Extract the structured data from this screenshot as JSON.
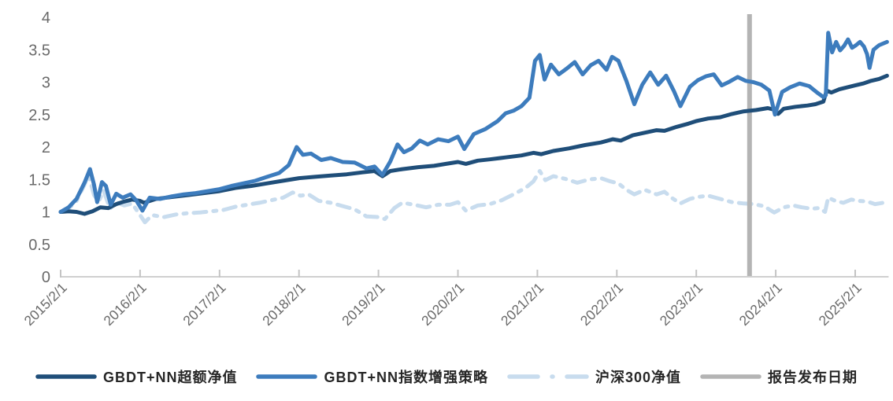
{
  "chart_data": {
    "type": "line",
    "title": "",
    "background": "#ffffff",
    "grid": false,
    "legend_position": "bottom",
    "x_axis": {
      "range_years": [
        0,
        10.42
      ],
      "tick_labels": [
        "2015/2/1",
        "2016/2/1",
        "2017/2/1",
        "2018/2/1",
        "2019/2/1",
        "2020/2/1",
        "2021/2/1",
        "2022/2/1",
        "2023/2/1",
        "2024/2/1",
        "2025/2/1"
      ],
      "tick_positions": [
        0,
        1,
        2,
        3,
        4,
        5,
        6,
        7,
        8,
        9,
        10
      ],
      "axis_color": "#d0d0d0",
      "tick_color": "#c4c4c4",
      "label_color": "#6a6a6a"
    },
    "y_axis": {
      "range": [
        0,
        4
      ],
      "ticks": [
        0,
        0.5,
        1,
        1.5,
        2,
        2.5,
        3,
        3.5,
        4
      ],
      "tick_labels": [
        "0",
        "0.5",
        "1",
        "1.5",
        "2",
        "2.5",
        "3",
        "3.5",
        "4"
      ],
      "label_color": "#6a6a6a"
    },
    "series": [
      {
        "name": "GBDT+NN超额净值",
        "color": "#1f4e79",
        "style": "solid",
        "points": [
          [
            0,
            1.0
          ],
          [
            0.1,
            1.01
          ],
          [
            0.2,
            1.0
          ],
          [
            0.3,
            0.97
          ],
          [
            0.4,
            1.01
          ],
          [
            0.5,
            1.07
          ],
          [
            0.6,
            1.06
          ],
          [
            0.7,
            1.12
          ],
          [
            0.8,
            1.16
          ],
          [
            0.9,
            1.19
          ],
          [
            1.0,
            1.17
          ],
          [
            1.05,
            1.14
          ],
          [
            1.2,
            1.2
          ],
          [
            1.4,
            1.23
          ],
          [
            1.6,
            1.26
          ],
          [
            1.8,
            1.29
          ],
          [
            2.0,
            1.32
          ],
          [
            2.2,
            1.37
          ],
          [
            2.4,
            1.4
          ],
          [
            2.6,
            1.44
          ],
          [
            2.8,
            1.48
          ],
          [
            3.0,
            1.52
          ],
          [
            3.2,
            1.54
          ],
          [
            3.4,
            1.56
          ],
          [
            3.6,
            1.58
          ],
          [
            3.8,
            1.61
          ],
          [
            3.95,
            1.63
          ],
          [
            4.05,
            1.55
          ],
          [
            4.15,
            1.63
          ],
          [
            4.3,
            1.66
          ],
          [
            4.5,
            1.69
          ],
          [
            4.7,
            1.71
          ],
          [
            4.85,
            1.74
          ],
          [
            5.0,
            1.77
          ],
          [
            5.1,
            1.74
          ],
          [
            5.25,
            1.79
          ],
          [
            5.4,
            1.81
          ],
          [
            5.6,
            1.84
          ],
          [
            5.8,
            1.87
          ],
          [
            5.95,
            1.91
          ],
          [
            6.05,
            1.89
          ],
          [
            6.2,
            1.94
          ],
          [
            6.4,
            1.98
          ],
          [
            6.6,
            2.03
          ],
          [
            6.8,
            2.07
          ],
          [
            6.95,
            2.12
          ],
          [
            7.05,
            2.1
          ],
          [
            7.2,
            2.18
          ],
          [
            7.35,
            2.22
          ],
          [
            7.5,
            2.26
          ],
          [
            7.6,
            2.25
          ],
          [
            7.75,
            2.31
          ],
          [
            7.9,
            2.36
          ],
          [
            8.0,
            2.4
          ],
          [
            8.15,
            2.44
          ],
          [
            8.3,
            2.46
          ],
          [
            8.45,
            2.51
          ],
          [
            8.6,
            2.55
          ],
          [
            8.75,
            2.57
          ],
          [
            8.9,
            2.6
          ],
          [
            8.97,
            2.58
          ],
          [
            9.03,
            2.51
          ],
          [
            9.1,
            2.59
          ],
          [
            9.25,
            2.62
          ],
          [
            9.4,
            2.64
          ],
          [
            9.5,
            2.66
          ],
          [
            9.6,
            2.7
          ],
          [
            9.64,
            2.87
          ],
          [
            9.7,
            2.84
          ],
          [
            9.8,
            2.89
          ],
          [
            9.9,
            2.92
          ],
          [
            10.0,
            2.95
          ],
          [
            10.1,
            2.98
          ],
          [
            10.2,
            3.02
          ],
          [
            10.3,
            3.05
          ],
          [
            10.4,
            3.1
          ]
        ]
      },
      {
        "name": "GBDT+NN指数增强策略",
        "color": "#3d7cbd",
        "style": "solid",
        "points": [
          [
            0,
            1.0
          ],
          [
            0.1,
            1.07
          ],
          [
            0.2,
            1.2
          ],
          [
            0.3,
            1.45
          ],
          [
            0.37,
            1.66
          ],
          [
            0.42,
            1.42
          ],
          [
            0.46,
            1.15
          ],
          [
            0.52,
            1.46
          ],
          [
            0.57,
            1.4
          ],
          [
            0.63,
            1.11
          ],
          [
            0.7,
            1.28
          ],
          [
            0.78,
            1.22
          ],
          [
            0.88,
            1.27
          ],
          [
            0.95,
            1.18
          ],
          [
            1.03,
            1.02
          ],
          [
            1.12,
            1.22
          ],
          [
            1.25,
            1.2
          ],
          [
            1.4,
            1.24
          ],
          [
            1.55,
            1.27
          ],
          [
            1.7,
            1.29
          ],
          [
            1.85,
            1.32
          ],
          [
            2.0,
            1.35
          ],
          [
            2.15,
            1.4
          ],
          [
            2.3,
            1.44
          ],
          [
            2.45,
            1.48
          ],
          [
            2.6,
            1.54
          ],
          [
            2.75,
            1.6
          ],
          [
            2.87,
            1.72
          ],
          [
            2.97,
            2.0
          ],
          [
            3.05,
            1.88
          ],
          [
            3.15,
            1.9
          ],
          [
            3.28,
            1.8
          ],
          [
            3.4,
            1.83
          ],
          [
            3.55,
            1.77
          ],
          [
            3.7,
            1.76
          ],
          [
            3.85,
            1.67
          ],
          [
            3.95,
            1.7
          ],
          [
            4.05,
            1.57
          ],
          [
            4.15,
            1.78
          ],
          [
            4.24,
            2.04
          ],
          [
            4.32,
            1.92
          ],
          [
            4.42,
            1.98
          ],
          [
            4.52,
            2.1
          ],
          [
            4.62,
            2.04
          ],
          [
            4.75,
            2.12
          ],
          [
            4.88,
            2.09
          ],
          [
            5.0,
            2.16
          ],
          [
            5.08,
            1.97
          ],
          [
            5.2,
            2.2
          ],
          [
            5.35,
            2.28
          ],
          [
            5.5,
            2.4
          ],
          [
            5.6,
            2.52
          ],
          [
            5.7,
            2.56
          ],
          [
            5.8,
            2.63
          ],
          [
            5.9,
            2.76
          ],
          [
            5.97,
            3.33
          ],
          [
            6.03,
            3.42
          ],
          [
            6.09,
            3.04
          ],
          [
            6.17,
            3.27
          ],
          [
            6.27,
            3.12
          ],
          [
            6.37,
            3.21
          ],
          [
            6.47,
            3.31
          ],
          [
            6.57,
            3.12
          ],
          [
            6.67,
            3.26
          ],
          [
            6.77,
            3.33
          ],
          [
            6.87,
            3.19
          ],
          [
            6.94,
            3.39
          ],
          [
            7.02,
            3.33
          ],
          [
            7.12,
            3.02
          ],
          [
            7.22,
            2.66
          ],
          [
            7.32,
            2.96
          ],
          [
            7.42,
            3.15
          ],
          [
            7.52,
            2.96
          ],
          [
            7.62,
            3.1
          ],
          [
            7.72,
            2.86
          ],
          [
            7.8,
            2.63
          ],
          [
            7.92,
            2.93
          ],
          [
            8.02,
            3.03
          ],
          [
            8.12,
            3.09
          ],
          [
            8.22,
            3.12
          ],
          [
            8.32,
            2.95
          ],
          [
            8.42,
            3.01
          ],
          [
            8.52,
            3.08
          ],
          [
            8.62,
            3.02
          ],
          [
            8.72,
            3.0
          ],
          [
            8.82,
            2.96
          ],
          [
            8.92,
            2.87
          ],
          [
            8.99,
            2.5
          ],
          [
            9.08,
            2.85
          ],
          [
            9.18,
            2.92
          ],
          [
            9.3,
            2.98
          ],
          [
            9.42,
            2.94
          ],
          [
            9.52,
            2.84
          ],
          [
            9.6,
            2.77
          ],
          [
            9.63,
            2.8
          ],
          [
            9.66,
            3.76
          ],
          [
            9.71,
            3.46
          ],
          [
            9.76,
            3.62
          ],
          [
            9.81,
            3.49
          ],
          [
            9.86,
            3.56
          ],
          [
            9.91,
            3.66
          ],
          [
            9.96,
            3.53
          ],
          [
            10.01,
            3.57
          ],
          [
            10.06,
            3.62
          ],
          [
            10.11,
            3.55
          ],
          [
            10.15,
            3.43
          ],
          [
            10.18,
            3.22
          ],
          [
            10.23,
            3.5
          ],
          [
            10.3,
            3.57
          ],
          [
            10.4,
            3.62
          ]
        ]
      },
      {
        "name": "沪深300净值",
        "color": "#c8dcee",
        "style": "dashed",
        "points": [
          [
            0,
            1.0
          ],
          [
            0.1,
            1.05
          ],
          [
            0.2,
            1.17
          ],
          [
            0.3,
            1.42
          ],
          [
            0.35,
            1.57
          ],
          [
            0.42,
            1.26
          ],
          [
            0.48,
            1.16
          ],
          [
            0.54,
            1.33
          ],
          [
            0.62,
            1.05
          ],
          [
            0.7,
            1.15
          ],
          [
            0.8,
            1.1
          ],
          [
            0.9,
            1.13
          ],
          [
            1.0,
            0.95
          ],
          [
            1.06,
            0.84
          ],
          [
            1.15,
            0.95
          ],
          [
            1.3,
            0.92
          ],
          [
            1.45,
            0.96
          ],
          [
            1.6,
            0.98
          ],
          [
            1.75,
            0.99
          ],
          [
            1.9,
            1.01
          ],
          [
            2.05,
            1.03
          ],
          [
            2.2,
            1.08
          ],
          [
            2.35,
            1.11
          ],
          [
            2.5,
            1.14
          ],
          [
            2.65,
            1.18
          ],
          [
            2.8,
            1.22
          ],
          [
            2.92,
            1.3
          ],
          [
            3.02,
            1.25
          ],
          [
            3.12,
            1.27
          ],
          [
            3.25,
            1.17
          ],
          [
            3.4,
            1.14
          ],
          [
            3.55,
            1.09
          ],
          [
            3.7,
            1.04
          ],
          [
            3.85,
            0.93
          ],
          [
            4.0,
            0.92
          ],
          [
            4.08,
            0.89
          ],
          [
            4.2,
            1.06
          ],
          [
            4.3,
            1.14
          ],
          [
            4.45,
            1.11
          ],
          [
            4.6,
            1.07
          ],
          [
            4.75,
            1.11
          ],
          [
            4.9,
            1.11
          ],
          [
            5.0,
            1.15
          ],
          [
            5.1,
            1.02
          ],
          [
            5.25,
            1.1
          ],
          [
            5.4,
            1.12
          ],
          [
            5.55,
            1.18
          ],
          [
            5.7,
            1.27
          ],
          [
            5.85,
            1.37
          ],
          [
            5.95,
            1.47
          ],
          [
            6.03,
            1.63
          ],
          [
            6.1,
            1.49
          ],
          [
            6.2,
            1.55
          ],
          [
            6.35,
            1.51
          ],
          [
            6.5,
            1.45
          ],
          [
            6.65,
            1.5
          ],
          [
            6.8,
            1.52
          ],
          [
            6.92,
            1.47
          ],
          [
            7.02,
            1.44
          ],
          [
            7.12,
            1.34
          ],
          [
            7.22,
            1.27
          ],
          [
            7.35,
            1.34
          ],
          [
            7.5,
            1.27
          ],
          [
            7.6,
            1.31
          ],
          [
            7.7,
            1.21
          ],
          [
            7.8,
            1.13
          ],
          [
            7.92,
            1.2
          ],
          [
            8.02,
            1.23
          ],
          [
            8.15,
            1.25
          ],
          [
            8.3,
            1.2
          ],
          [
            8.45,
            1.15
          ],
          [
            8.6,
            1.13
          ],
          [
            8.72,
            1.12
          ],
          [
            8.85,
            1.09
          ],
          [
            8.98,
            0.99
          ],
          [
            9.1,
            1.07
          ],
          [
            9.22,
            1.1
          ],
          [
            9.33,
            1.07
          ],
          [
            9.45,
            1.05
          ],
          [
            9.55,
            1.06
          ],
          [
            9.62,
            1.0
          ],
          [
            9.66,
            1.22
          ],
          [
            9.75,
            1.17
          ],
          [
            9.85,
            1.14
          ],
          [
            9.95,
            1.19
          ],
          [
            10.05,
            1.17
          ],
          [
            10.15,
            1.16
          ],
          [
            10.25,
            1.12
          ],
          [
            10.35,
            1.14
          ]
        ]
      },
      {
        "name": "报告发布日期",
        "color": "#b4b4b4",
        "style": "vline",
        "x": 8.67
      }
    ]
  }
}
